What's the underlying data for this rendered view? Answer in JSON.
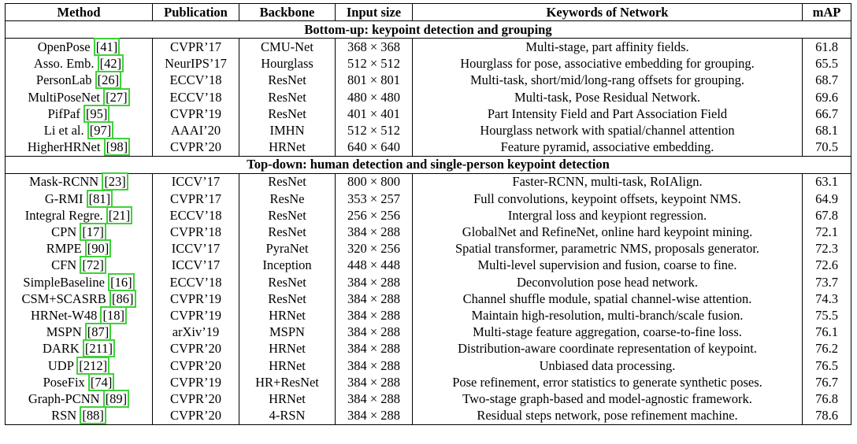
{
  "table": {
    "header": [
      "Method",
      "Publication",
      "Backbone",
      "Input size",
      "Keywords of Network",
      "mAP"
    ],
    "sections": [
      {
        "title": "Bottom-up: keypoint detection and grouping",
        "rows": [
          {
            "method": "OpenPose",
            "cite": "[41]",
            "publication": "CVPR’17",
            "backbone": "CMU-Net",
            "input_size": "368 × 368",
            "keywords": "Multi-stage, part affinity fields.",
            "map": 61.8
          },
          {
            "method": "Asso. Emb.",
            "cite": "[42]",
            "publication": "NeurIPS’17",
            "backbone": "Hourglass",
            "input_size": "512 × 512",
            "keywords": "Hourglass for pose, associative embedding for grouping.",
            "map": 65.5
          },
          {
            "method": "PersonLab",
            "cite": "[26]",
            "publication": "ECCV’18",
            "backbone": "ResNet",
            "input_size": "801 × 801",
            "keywords": "Multi-task, short/mid/long-rang offsets for grouping.",
            "map": 68.7
          },
          {
            "method": "MultiPoseNet",
            "cite": "[27]",
            "publication": "ECCV’18",
            "backbone": "ResNet",
            "input_size": "480 × 480",
            "keywords": "Multi-task, Pose Residual Network.",
            "map": 69.6
          },
          {
            "method": "PifPaf",
            "cite": "[95]",
            "publication": "CVPR’19",
            "backbone": "ResNet",
            "input_size": "401 × 401",
            "keywords": "Part Intensity Field and Part Association Field",
            "map": 66.7
          },
          {
            "method": "Li et al.",
            "cite": "[97]",
            "publication": "AAAI’20",
            "backbone": "IMHN",
            "input_size": "512 × 512",
            "keywords": "Hourglass network with spatial/channel attention",
            "map": 68.1
          },
          {
            "method": "HigherHRNet",
            "cite": "[98]",
            "publication": "CVPR’20",
            "backbone": "HRNet",
            "input_size": "640 × 640",
            "keywords": "Feature pyramid, associative embedding.",
            "map": 70.5
          }
        ]
      },
      {
        "title": "Top-down: human detection and single-person keypoint detection",
        "rows": [
          {
            "method": "Mask-RCNN",
            "cite": "[23]",
            "publication": "ICCV’17",
            "backbone": "ResNet",
            "input_size": "800 × 800",
            "keywords": "Faster-RCNN, multi-task, RoIAlign.",
            "map": 63.1
          },
          {
            "method": "G-RMI",
            "cite": "[81]",
            "publication": "CVPR’17",
            "backbone": "ResNe",
            "input_size": "353 × 257",
            "keywords": "Full convolutions, keypoint offsets, keypoint NMS.",
            "map": 64.9
          },
          {
            "method": "Integral Regre.",
            "cite": "[21]",
            "publication": "ECCV’18",
            "backbone": "ResNet",
            "input_size": "256 × 256",
            "keywords": "Intergral loss and keypiont regression.",
            "map": 67.8
          },
          {
            "method": "CPN",
            "cite": "[17]",
            "publication": "CVPR’18",
            "backbone": "ResNet",
            "input_size": "384 × 288",
            "keywords": "GlobalNet and RefineNet, online hard keypoint mining.",
            "map": 72.1
          },
          {
            "method": "RMPE",
            "cite": "[90]",
            "publication": "ICCV’17",
            "backbone": "PyraNet",
            "input_size": "320 × 256",
            "keywords": "Spatial transformer, parametric NMS, proposals generator.",
            "map": 72.3
          },
          {
            "method": "CFN",
            "cite": "[72]",
            "publication": "ICCV’17",
            "backbone": "Inception",
            "input_size": "448 × 448",
            "keywords": "Multi-level supervision and fusion, coarse to fine.",
            "map": 72.6
          },
          {
            "method": "SimpleBaseline",
            "cite": "[16]",
            "publication": "ECCV’18",
            "backbone": "ResNet",
            "input_size": "384 × 288",
            "keywords": "Deconvolution pose head network.",
            "map": 73.7
          },
          {
            "method": "CSM+SCASRB",
            "cite": "[86]",
            "publication": "CVPR’19",
            "backbone": "ResNet",
            "input_size": "384 × 288",
            "keywords": "Channel shuffle module, spatial channel-wise attention.",
            "map": 74.3
          },
          {
            "method": "HRNet-W48",
            "cite": "[18]",
            "publication": "CVPR’19",
            "backbone": "HRNet",
            "input_size": "384 × 288",
            "keywords": "Maintain high-resolution, multi-branch/scale fusion.",
            "map": 75.5
          },
          {
            "method": "MSPN",
            "cite": "[87]",
            "publication": "arXiv’19",
            "backbone": "MSPN",
            "input_size": "384 × 288",
            "keywords": "Multi-stage feature aggregation, coarse-to-fine loss.",
            "map": 76.1
          },
          {
            "method": "DARK",
            "cite": "[211]",
            "publication": "CVPR’20",
            "backbone": "HRNet",
            "input_size": "384 × 288",
            "keywords": "Distribution-aware coordinate representation of keypoint.",
            "map": 76.2
          },
          {
            "method": "UDP",
            "cite": "[212]",
            "publication": "CVPR’20",
            "backbone": "HRNet",
            "input_size": "384 × 288",
            "keywords": "Unbiased data processing.",
            "map": 76.5
          },
          {
            "method": "PoseFix",
            "cite": "[74]",
            "publication": "CVPR’19",
            "backbone": "HR+ResNet",
            "input_size": "384 × 288",
            "keywords": "Pose refinement, error statistics to generate synthetic poses.",
            "map": 76.7
          },
          {
            "method": "Graph-PCNN",
            "cite": "[89]",
            "publication": "CVPR’20",
            "backbone": "HRNet",
            "input_size": "384 × 288",
            "keywords": "Two-stage graph-based and model-agnostic framework.",
            "map": 76.8
          },
          {
            "method": "RSN",
            "cite": "[88]",
            "publication": "CVPR’20",
            "backbone": "4-RSN",
            "input_size": "384 × 288",
            "keywords": "Residual steps network, pose refinement machine.",
            "map": 78.6
          }
        ]
      }
    ]
  }
}
